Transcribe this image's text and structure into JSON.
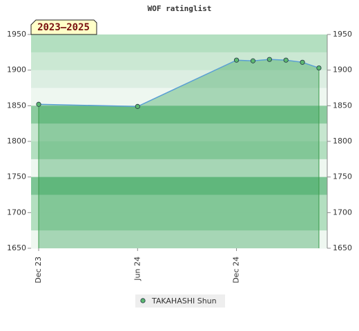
{
  "chart_data": {
    "type": "area",
    "title": "WOF ratinglist",
    "subtitle": "2023–2025",
    "x": [
      "2023-12",
      "2024-06",
      "2024-12",
      "2025-01",
      "2025-02",
      "2025-03",
      "2025-04",
      "2025-05"
    ],
    "xticks": [
      {
        "value": "2023-12",
        "label": "Dec 23"
      },
      {
        "value": "2024-06",
        "label": "Jun 24"
      },
      {
        "value": "2024-12",
        "label": "Dec 24"
      }
    ],
    "series": [
      {
        "name": "TAKAHASHI Shun",
        "color": "#5a9fd4",
        "marker_color": "#5cb870",
        "legend_text_color": "#3d9a50",
        "values": [
          1852,
          1849,
          1914,
          1913,
          1915,
          1914,
          1911,
          1903
        ]
      }
    ],
    "ylim": [
      1650,
      1950
    ],
    "yticks": [
      1650,
      1700,
      1750,
      1800,
      1850,
      1900,
      1950
    ],
    "y2lim": [
      1650,
      1950
    ],
    "y2ticks": [
      1650,
      1700,
      1750,
      1800,
      1850,
      1900,
      1950
    ],
    "grid": false
  }
}
